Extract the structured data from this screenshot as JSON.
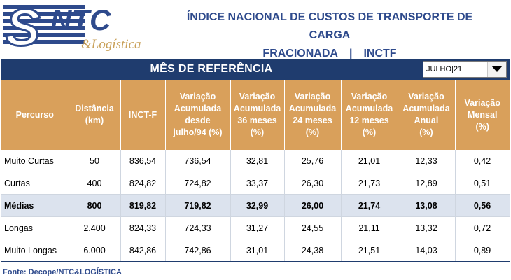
{
  "header": {
    "logo": {
      "text": "NTC",
      "subtext": "&Logística"
    },
    "title_line1": "ÍNDICE NACIONAL DE CUSTOS DE TRANSPORTE DE CARGA",
    "title_line2_left": "FRACIONADA",
    "title_sep": "|",
    "title_line2_right": "INCTF"
  },
  "reference": {
    "label": "MÊS DE REFERÊNCIA",
    "month": "JULHO|21"
  },
  "table": {
    "headers": [
      "Percurso",
      "Distância\n(km)",
      "INCT-F",
      "Variação\nAcumulada\ndesde\njulho/94   (%)",
      "Variação\nAcumulada\n36 meses\n(%)",
      "Variação\nAcumulada\n24 meses\n(%)",
      "Variação\nAcumulada\n12 meses\n(%)",
      "Variação\nAcumulada\nAnual\n(%)",
      "Variação\nMensal\n(%)"
    ],
    "rows": [
      [
        "Muito Curtas",
        "50",
        "836,54",
        "736,54",
        "32,81",
        "25,76",
        "21,01",
        "12,33",
        "0,42"
      ],
      [
        "Curtas",
        "400",
        "824,82",
        "724,82",
        "33,37",
        "26,30",
        "21,73",
        "12,89",
        "0,51"
      ],
      [
        "Médias",
        "800",
        "819,82",
        "719,82",
        "32,99",
        "26,00",
        "21,74",
        "13,08",
        "0,56"
      ],
      [
        "Longas",
        "2.400",
        "824,33",
        "724,33",
        "31,27",
        "24,55",
        "21,11",
        "13,32",
        "0,72"
      ],
      [
        "Muito Longas",
        "6.000",
        "842,86",
        "742,86",
        "31,01",
        "24,38",
        "21,51",
        "14,03",
        "0,89"
      ]
    ],
    "highlight_row": 2
  },
  "source": "Fonte: Decope/NTC&LOGÍSTICA",
  "colors": {
    "navy": "#1F3C6E",
    "header_orange": "#D9A05B",
    "highlight": "#DCE3EE",
    "title_blue": "#2E4A8C",
    "logo_gold": "#C9A15A"
  }
}
